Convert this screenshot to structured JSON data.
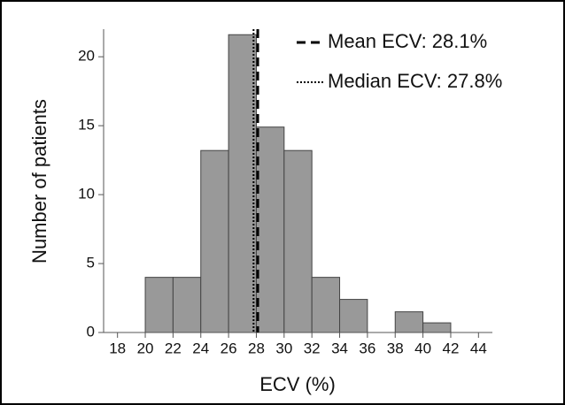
{
  "chart_data": {
    "type": "histogram",
    "xlabel": "ECV (%)",
    "ylabel": "Number of patients",
    "bins": [
      20,
      22,
      24,
      26,
      28,
      30,
      32,
      34,
      36,
      38,
      40,
      42
    ],
    "counts": [
      4.0,
      4.0,
      13.2,
      21.6,
      14.9,
      13.2,
      4.0,
      2.4,
      0,
      1.5,
      0.7
    ],
    "color": "#999999",
    "xlim": [
      17,
      45
    ],
    "xticks": [
      18,
      20,
      22,
      24,
      26,
      28,
      30,
      32,
      34,
      36,
      38,
      40,
      42,
      44
    ],
    "ylim": [
      0,
      22
    ],
    "yticks": [
      0,
      5,
      10,
      15,
      20
    ],
    "reference_lines": [
      {
        "name": "Mean ECV: 28.1%",
        "value": 28.1,
        "style": "dashed"
      },
      {
        "name": "Median ECV: 27.8%",
        "value": 27.8,
        "style": "dotted"
      }
    ]
  }
}
